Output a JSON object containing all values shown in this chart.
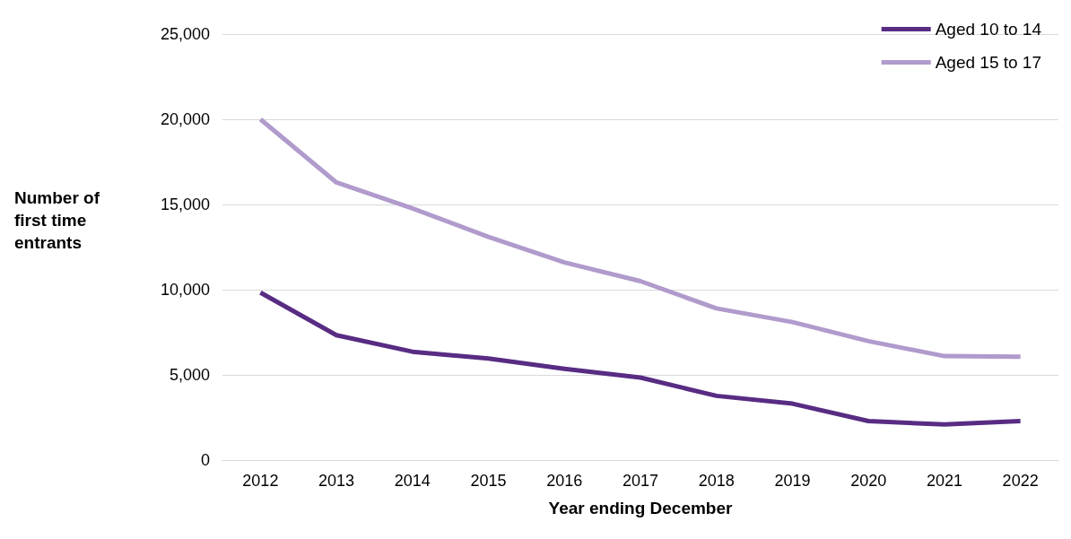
{
  "chart_data": {
    "type": "line",
    "xlabel": "Year ending December",
    "ylabel": "Number of first time entrants",
    "categories": [
      "2012",
      "2013",
      "2014",
      "2015",
      "2016",
      "2017",
      "2018",
      "2019",
      "2020",
      "2021",
      "2022"
    ],
    "series": [
      {
        "name": "Aged 10 to 14",
        "color": "#582c83",
        "values": [
          9830,
          7330,
          6360,
          5960,
          5350,
          4840,
          3770,
          3310,
          2290,
          2090,
          2290
        ]
      },
      {
        "name": "Aged 15 to 17",
        "color": "#b09bcc",
        "values": [
          20000,
          16290,
          14770,
          13100,
          11600,
          10500,
          8900,
          8100,
          6980,
          6100,
          6060
        ]
      }
    ],
    "ylim": [
      0,
      25000
    ],
    "yticks": [
      0,
      {
        "value": 5000,
        "label": "5,000"
      },
      {
        "value": 10000,
        "label": "10,000"
      },
      {
        "value": 15000,
        "label": "15,000"
      },
      {
        "value": 20000,
        "label": "20,000"
      },
      {
        "value": 25000,
        "label": "25,000"
      }
    ],
    "grid": "y",
    "legend": "top right",
    "marker": "none",
    "line_style": "solid"
  }
}
